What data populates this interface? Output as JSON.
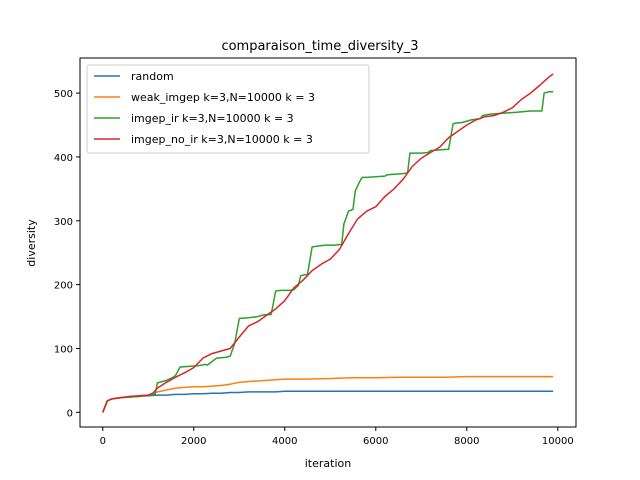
{
  "chart_data": {
    "type": "line",
    "title": "comparaison_time_diversity_3",
    "xlabel": "iteration",
    "ylabel": "diversity",
    "xlim": [
      -500,
      10400
    ],
    "ylim": [
      -23,
      555
    ],
    "xticks": [
      0,
      2000,
      4000,
      6000,
      8000,
      10000
    ],
    "yticks": [
      0,
      100,
      200,
      300,
      400,
      500
    ],
    "grid": false,
    "legend_position": "top-left",
    "series": [
      {
        "name": "random",
        "color": "#1f77b4",
        "x": [
          0,
          100,
          200,
          400,
          600,
          800,
          1000,
          1200,
          1400,
          1600,
          1800,
          2000,
          2200,
          2400,
          2600,
          2800,
          3000,
          3200,
          3500,
          3800,
          4000,
          4500,
          5000,
          6000,
          7000,
          8000,
          9000,
          9900
        ],
        "y": [
          0,
          18,
          21,
          23,
          24,
          25,
          26,
          27,
          27,
          28,
          28,
          29,
          29,
          30,
          30,
          31,
          31,
          32,
          32,
          32,
          33,
          33,
          33,
          33,
          33,
          33,
          33,
          33
        ]
      },
      {
        "name": "weak_imgep k=3,N=10000 k = 3",
        "color": "#ff7f0e",
        "x": [
          0,
          100,
          200,
          400,
          600,
          800,
          1000,
          1200,
          1400,
          1600,
          1800,
          2000,
          2200,
          2400,
          2600,
          2800,
          3000,
          3400,
          3800,
          4000,
          4500,
          5000,
          5500,
          6000,
          6500,
          7000,
          7500,
          8000,
          8500,
          9000,
          9500,
          9900
        ],
        "y": [
          0,
          18,
          21,
          23,
          24,
          25,
          27,
          32,
          35,
          38,
          39,
          40,
          40,
          41,
          42,
          44,
          47,
          49,
          51,
          52,
          52,
          53,
          54,
          54,
          55,
          55,
          55,
          56,
          56,
          56,
          56,
          56
        ]
      },
      {
        "name": "imgep_ir k=3,N=10000 k = 3",
        "color": "#2ca02c",
        "x": [
          0,
          100,
          200,
          400,
          600,
          800,
          1000,
          1150,
          1200,
          1400,
          1550,
          1600,
          1700,
          1900,
          2100,
          2250,
          2300,
          2500,
          2700,
          2800,
          2900,
          3000,
          3200,
          3400,
          3500,
          3600,
          3700,
          3800,
          3900,
          4100,
          4200,
          4300,
          4350,
          4400,
          4500,
          4600,
          4700,
          4900,
          5100,
          5250,
          5300,
          5400,
          5500,
          5550,
          5650,
          5700,
          5800,
          6000,
          6200,
          6250,
          6400,
          6600,
          6700,
          6750,
          6900,
          7000,
          7150,
          7200,
          7400,
          7600,
          7700,
          7750,
          7900,
          8100,
          8300,
          8350,
          8500,
          8700,
          8900,
          9100,
          9400,
          9600,
          9650,
          9700,
          9800,
          9900
        ],
        "y": [
          0,
          18,
          21,
          23,
          24,
          25,
          27,
          28,
          46,
          50,
          55,
          58,
          71,
          72,
          73,
          75,
          74,
          85,
          86,
          88,
          108,
          147,
          148,
          150,
          152,
          153,
          153,
          190,
          191,
          191,
          192,
          199,
          214,
          215,
          216,
          259,
          260,
          262,
          262,
          263,
          295,
          315,
          318,
          347,
          362,
          368,
          368,
          369,
          370,
          372,
          373,
          374,
          375,
          406,
          406,
          406,
          407,
          410,
          411,
          412,
          452,
          453,
          454,
          458,
          460,
          465,
          467,
          468,
          469,
          470,
          472,
          472,
          472,
          500,
          502,
          502
        ]
      },
      {
        "name": "imgep_no_ir k=3,N=10000 k = 3",
        "color": "#d62728",
        "x": [
          0,
          100,
          200,
          400,
          600,
          800,
          1000,
          1100,
          1200,
          1400,
          1600,
          1800,
          2000,
          2200,
          2400,
          2600,
          2800,
          3000,
          3200,
          3400,
          3600,
          3800,
          4000,
          4200,
          4400,
          4600,
          4800,
          5000,
          5200,
          5400,
          5600,
          5800,
          6000,
          6200,
          6400,
          6600,
          6800,
          7000,
          7200,
          7400,
          7600,
          7800,
          8000,
          8200,
          8400,
          8600,
          8800,
          9000,
          9200,
          9400,
          9600,
          9800,
          9900
        ],
        "y": [
          0,
          18,
          21,
          23,
          25,
          26,
          27,
          30,
          38,
          47,
          55,
          62,
          70,
          85,
          92,
          96,
          100,
          118,
          135,
          142,
          152,
          162,
          175,
          195,
          207,
          222,
          232,
          240,
          255,
          280,
          303,
          315,
          322,
          338,
          350,
          365,
          385,
          398,
          407,
          415,
          430,
          440,
          450,
          458,
          463,
          465,
          470,
          477,
          490,
          500,
          512,
          525,
          530
        ]
      }
    ]
  }
}
